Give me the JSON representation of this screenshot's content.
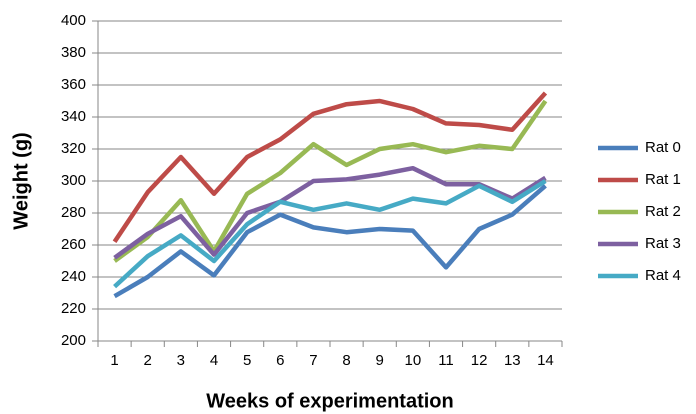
{
  "chart_data": {
    "type": "line",
    "x_label": "Weeks of experimentation",
    "y_label": "Weight (g)",
    "categories": [
      "1",
      "2",
      "3",
      "4",
      "5",
      "6",
      "7",
      "8",
      "9",
      "10",
      "11",
      "12",
      "13",
      "14"
    ],
    "series": [
      {
        "name": "Rat 0",
        "color": "#4a7ebb",
        "values": [
          228,
          240,
          256,
          241,
          268,
          279,
          271,
          268,
          270,
          269,
          246,
          270,
          279,
          297
        ]
      },
      {
        "name": "Rat 1",
        "color": "#be4b48",
        "values": [
          262,
          293,
          315,
          292,
          315,
          326,
          342,
          348,
          350,
          345,
          336,
          335,
          332,
          355
        ]
      },
      {
        "name": "Rat 2",
        "color": "#98b954",
        "values": [
          250,
          265,
          288,
          256,
          292,
          305,
          323,
          310,
          320,
          323,
          318,
          322,
          320,
          350
        ]
      },
      {
        "name": "Rat 3",
        "color": "#7d60a0",
        "values": [
          252,
          267,
          278,
          254,
          280,
          287,
          300,
          301,
          304,
          308,
          298,
          298,
          289,
          302
        ]
      },
      {
        "name": "Rat 4",
        "color": "#46aac5",
        "values": [
          234,
          253,
          266,
          250,
          273,
          287,
          282,
          286,
          282,
          289,
          286,
          297,
          287,
          300
        ]
      }
    ],
    "ylim": [
      200,
      400
    ],
    "yticks": [
      200,
      220,
      240,
      260,
      280,
      300,
      320,
      340,
      360,
      380,
      400
    ],
    "grid": true,
    "legend": "right"
  }
}
